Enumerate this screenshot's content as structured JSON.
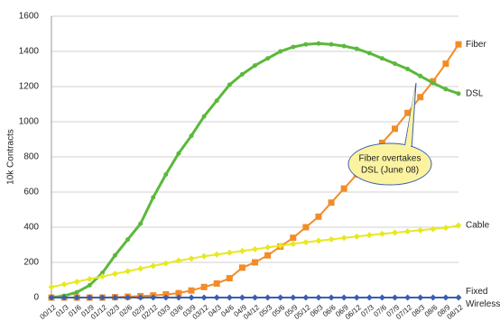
{
  "chart_data": {
    "type": "line",
    "y_label": "10k Contracts",
    "categories": [
      "00/12",
      "01/3",
      "01/6",
      "01/9",
      "01/12",
      "02/3",
      "02/6",
      "02/9",
      "02/12",
      "03/3",
      "03/6",
      "03/9",
      "03/12",
      "04/3",
      "04/6",
      "04/9",
      "04/12",
      "05/3",
      "05/6",
      "05/9",
      "05/12",
      "06/3",
      "06/6",
      "06/9",
      "06/12",
      "07/3",
      "07/6",
      "07/9",
      "07/12",
      "08/3",
      "08/6",
      "08/9",
      "08/12"
    ],
    "series": [
      {
        "name": "Fiber",
        "color": "#f28c28",
        "marker": "square",
        "values": [
          0,
          0,
          0,
          0,
          0,
          2,
          5,
          8,
          12,
          18,
          25,
          40,
          60,
          80,
          110,
          170,
          200,
          240,
          290,
          340,
          400,
          460,
          540,
          620,
          700,
          790,
          880,
          960,
          1050,
          1140,
          1230,
          1330,
          1440
        ]
      },
      {
        "name": "DSL",
        "color": "#5cb83c",
        "marker": "circle",
        "values": [
          0,
          10,
          30,
          70,
          140,
          240,
          330,
          420,
          570,
          700,
          820,
          920,
          1030,
          1120,
          1210,
          1270,
          1320,
          1360,
          1400,
          1425,
          1440,
          1445,
          1440,
          1430,
          1415,
          1390,
          1360,
          1330,
          1300,
          1260,
          1220,
          1185,
          1160
        ]
      },
      {
        "name": "Cable",
        "color": "#e8e820",
        "marker": "diamond",
        "values": [
          60,
          75,
          90,
          105,
          120,
          135,
          150,
          165,
          180,
          195,
          210,
          222,
          235,
          245,
          255,
          265,
          275,
          285,
          295,
          305,
          315,
          323,
          331,
          339,
          347,
          355,
          362,
          369,
          376,
          383,
          390,
          397,
          410
        ]
      },
      {
        "name": "Fixed Wireless",
        "color": "#3a5fb0",
        "marker": "diamond",
        "values": [
          0,
          0,
          0,
          0,
          0,
          0,
          0,
          0,
          0,
          0,
          0,
          0,
          0,
          0,
          0,
          0,
          0,
          0,
          0,
          0,
          0,
          0,
          0,
          0,
          0,
          0,
          0,
          0,
          0,
          0,
          0,
          0,
          0
        ]
      }
    ],
    "annotation": {
      "lines": [
        "Fiber overtakes",
        "DSL (June 08)"
      ],
      "color": "#fbf3a0"
    },
    "ylim": [
      0,
      1600
    ],
    "yticks": [
      0,
      200,
      400,
      600,
      800,
      1000,
      1200,
      1400,
      1600
    ],
    "grid": true
  }
}
